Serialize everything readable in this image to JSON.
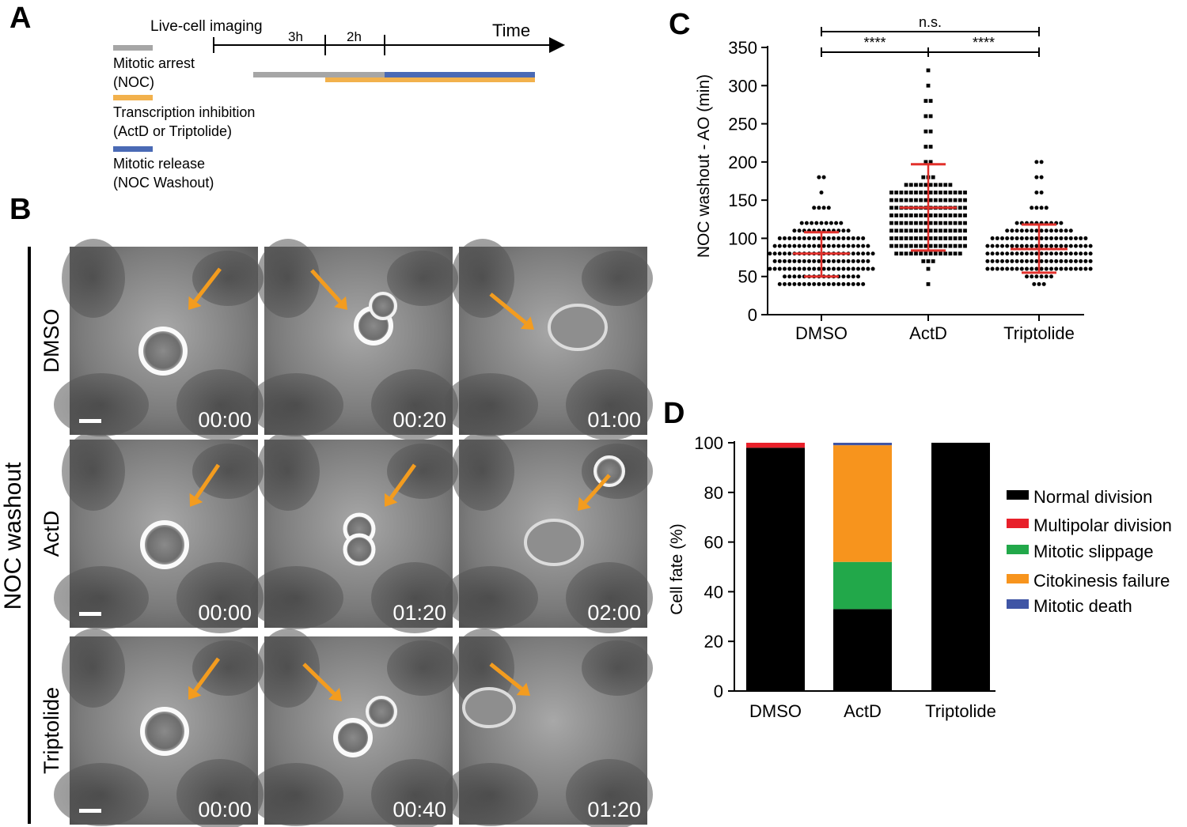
{
  "panels": {
    "a": "A",
    "b": "B",
    "c": "C",
    "d": "D"
  },
  "timeline": {
    "live_cell_label": "Live-cell imaging",
    "time_label": "Time",
    "interval1": "3h",
    "interval2": "2h",
    "legend": [
      {
        "line1": "Mitotic arrest",
        "line2": "(NOC)",
        "color": "#a6a6a6"
      },
      {
        "line1": "Transcription inhibition",
        "line2": "(ActD or Triptolide)",
        "color": "#f2b14c"
      },
      {
        "line1": "Mitotic release",
        "line2": "(NOC Washout)",
        "color": "#4a6ab5"
      }
    ]
  },
  "micrographs": {
    "side_label": "NOC washout",
    "arrow_color": "#f39c1f",
    "rows": [
      {
        "label": "DMSO",
        "times": [
          "00:00",
          "00:20",
          "01:00"
        ]
      },
      {
        "label": "ActD",
        "times": [
          "00:00",
          "01:20",
          "02:00"
        ]
      },
      {
        "label": "Triptolide",
        "times": [
          "00:00",
          "00:40",
          "01:20"
        ]
      }
    ]
  },
  "chart_data": [
    {
      "type": "scatter",
      "ylabel": "NOC washout - AO (min)",
      "xlabel": "",
      "ylim": [
        0,
        350
      ],
      "yticks": [
        0,
        50,
        100,
        150,
        200,
        250,
        300,
        350
      ],
      "categories": [
        "DMSO",
        "ActD",
        "Triptolide"
      ],
      "mean_sd": [
        {
          "mean": 80,
          "lower": 50,
          "upper": 108
        },
        {
          "mean": 140,
          "lower": 84,
          "upper": 197
        },
        {
          "mean": 86,
          "lower": 55,
          "upper": 118
        }
      ],
      "distribution": [
        {
          "values": [
            40,
            50,
            60,
            70,
            80,
            90,
            100,
            110,
            120,
            140,
            160,
            180
          ],
          "counts": [
            18,
            16,
            22,
            20,
            22,
            20,
            18,
            12,
            9,
            4,
            1,
            2
          ]
        },
        {
          "values": [
            40,
            60,
            70,
            80,
            90,
            100,
            110,
            120,
            130,
            140,
            150,
            160,
            170,
            180,
            200,
            220,
            240,
            260,
            280,
            300,
            320
          ],
          "counts": [
            1,
            1,
            3,
            14,
            16,
            16,
            16,
            16,
            16,
            16,
            16,
            16,
            10,
            3,
            2,
            2,
            2,
            2,
            2,
            1,
            1
          ]
        },
        {
          "values": [
            40,
            50,
            60,
            70,
            80,
            90,
            100,
            110,
            120,
            140,
            160,
            180,
            200
          ],
          "counts": [
            3,
            6,
            22,
            22,
            22,
            22,
            20,
            14,
            10,
            4,
            2,
            2,
            2
          ]
        }
      ],
      "significance": [
        {
          "from": "DMSO",
          "to": "Triptolide",
          "label": "n.s."
        },
        {
          "from": "DMSO",
          "to": "ActD",
          "label": "****"
        },
        {
          "from": "ActD",
          "to": "Triptolide",
          "label": "****"
        }
      ]
    },
    {
      "type": "bar",
      "stacked": true,
      "ylabel": "Cell fate (%)",
      "xlabel": "",
      "ylim": [
        0,
        100
      ],
      "yticks": [
        0,
        20,
        40,
        60,
        80,
        100
      ],
      "categories": [
        "DMSO",
        "ActD",
        "Triptolide"
      ],
      "series": [
        {
          "name": "Normal division",
          "color": "#000000",
          "values": [
            98,
            33,
            100
          ]
        },
        {
          "name": "Multipolar division",
          "color": "#e8202a",
          "values": [
            2,
            0,
            0
          ]
        },
        {
          "name": "Mitotic slippage",
          "color": "#22a84a",
          "values": [
            0,
            19,
            0
          ]
        },
        {
          "name": "Citokinesis failure",
          "color": "#f7941d",
          "values": [
            0,
            47,
            0
          ]
        },
        {
          "name": "Mitotic death",
          "color": "#3f55a5",
          "values": [
            0,
            1,
            0
          ]
        }
      ]
    }
  ]
}
